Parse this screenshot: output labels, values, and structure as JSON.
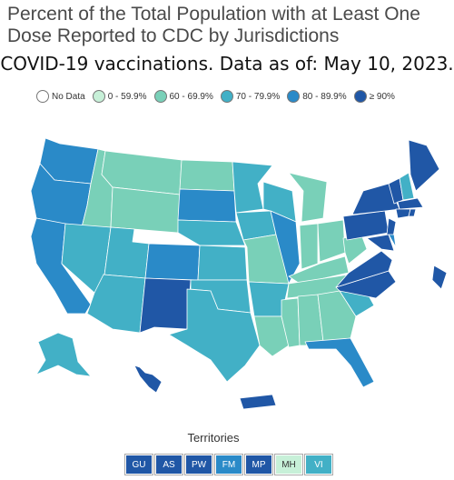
{
  "header": {
    "title_line1": "Percent of the Total Population with at Least One",
    "title_line2": "Dose Reported to CDC by Jurisdictions",
    "subtitle": "COVID-19 vaccinations. Data as of: May 10, 2023."
  },
  "legend": {
    "items": [
      {
        "label": "No Data",
        "color": "#ffffff"
      },
      {
        "label": "0 - 59.9%",
        "color": "#c7f0d8"
      },
      {
        "label": "60 - 69.9%",
        "color": "#79d0b8"
      },
      {
        "label": "70 - 79.9%",
        "color": "#42b0c6"
      },
      {
        "label": "80 - 89.9%",
        "color": "#2a8ac8"
      },
      {
        "label": "≥ 90%",
        "color": "#2057a6"
      }
    ]
  },
  "territories_label": "Territories",
  "territories": [
    {
      "label": "GU",
      "color": "#2057a6",
      "light": false
    },
    {
      "label": "AS",
      "color": "#2057a6",
      "light": false
    },
    {
      "label": "PW",
      "color": "#2057a6",
      "light": false
    },
    {
      "label": "FM",
      "color": "#2a8ac8",
      "light": false
    },
    {
      "label": "MP",
      "color": "#2057a6",
      "light": false
    },
    {
      "label": "MH",
      "color": "#c7f0d8",
      "light": true
    },
    {
      "label": "VI",
      "color": "#42b0c6",
      "light": false
    }
  ]
}
